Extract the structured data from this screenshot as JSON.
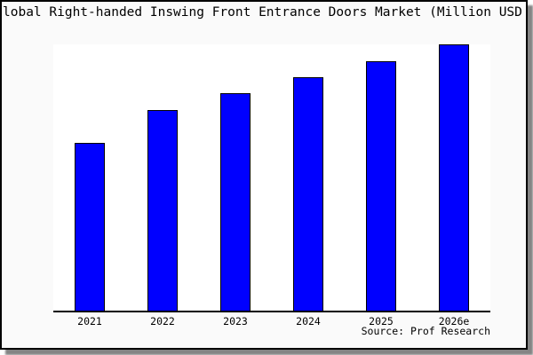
{
  "page": {
    "canvas_background": "#fafafa",
    "plot_background": "#ffffff",
    "frame_color": "#000000"
  },
  "title": {
    "text": "lobal Right-handed Inswing Front Entrance Doors Market (Million USD"
  },
  "source": {
    "label": "Source: Prof Research"
  },
  "chart_data": {
    "type": "bar",
    "title": "lobal Right-handed Inswing Front Entrance Doors Market (Million USD",
    "categories": [
      "2021",
      "2022",
      "2023",
      "2024",
      "2025",
      "2026e"
    ],
    "values": [
      63.0,
      75.3,
      81.7,
      87.7,
      93.7,
      100.0
    ],
    "values_note": "y-axis has no ticks or labels in the chart; values are relative units estimated from bar pixel heights with 2026e normalized to 100",
    "bar_color": "#0000ff",
    "bar_border_color": "#000000",
    "xlabel": "",
    "ylabel": "",
    "ylim": [
      0,
      100
    ],
    "grid": false,
    "legend": false,
    "source": "Source: Prof Research"
  }
}
